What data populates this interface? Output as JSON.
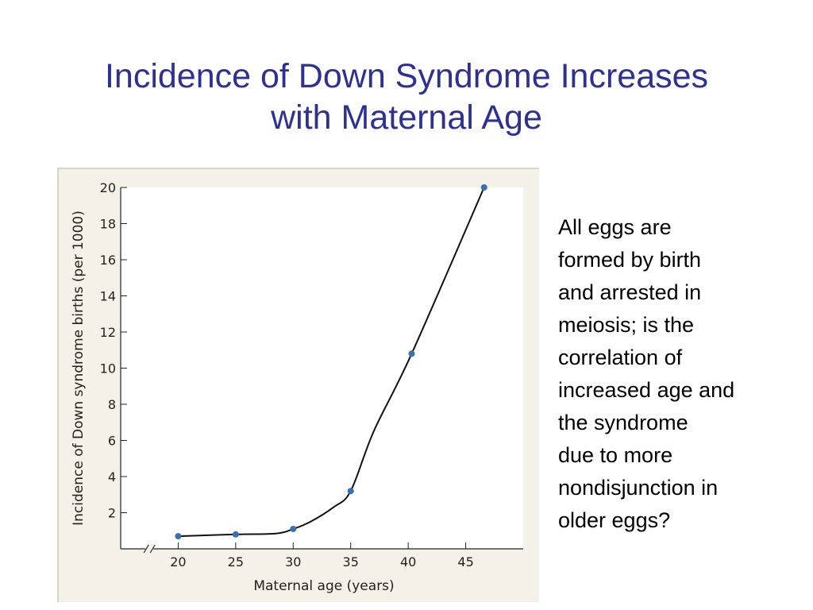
{
  "slide": {
    "title_lines": [
      "Incidence of Down Syndrome Increases",
      "with Maternal Age"
    ],
    "body_lines": [
      "All eggs are",
      "formed by birth",
      "and arrested in",
      "meiosis; is the",
      "correlation of",
      "increased age and",
      "the syndrome",
      "due to more",
      "nondisjunction in",
      "older eggs?"
    ]
  },
  "chart_data": {
    "type": "line",
    "title": "",
    "xlabel": "Maternal age (years)",
    "ylabel": "Incidence of Down syndrome births (per 1000)",
    "xlim": [
      15,
      50
    ],
    "ylim": [
      0,
      20
    ],
    "x_ticks": [
      20,
      25,
      30,
      35,
      40,
      45
    ],
    "x_tick_labels": [
      "20",
      "25",
      "30",
      "35",
      "40",
      "45"
    ],
    "y_ticks": [
      2,
      4,
      6,
      8,
      10,
      12,
      14,
      16,
      18,
      20
    ],
    "y_tick_labels": [
      "2",
      "4",
      "6",
      "8",
      "10",
      "12",
      "14",
      "16",
      "18",
      "20"
    ],
    "x_axis_break": true,
    "grid": false,
    "series": [
      {
        "points": [
          {
            "x": 20,
            "y": 0.7
          },
          {
            "x": 25,
            "y": 0.8
          },
          {
            "x": 30,
            "y": 1.1
          },
          {
            "x": 35,
            "y": 3.2
          },
          {
            "x": 40.3,
            "y": 10.8
          },
          {
            "x": 46.6,
            "y": 20
          }
        ],
        "curve": [
          {
            "x": 20,
            "y": 0.7
          },
          {
            "x": 25,
            "y": 0.8
          },
          {
            "x": 28.5,
            "y": 0.85
          },
          {
            "x": 30,
            "y": 1.1
          },
          {
            "x": 31.5,
            "y": 1.5
          },
          {
            "x": 33.5,
            "y": 2.3
          },
          {
            "x": 35,
            "y": 3.2
          },
          {
            "x": 37,
            "y": 6.5
          },
          {
            "x": 40.3,
            "y": 10.8
          },
          {
            "x": 46.6,
            "y": 20
          }
        ]
      }
    ],
    "colors": {
      "line": "#111111",
      "marker": "#3a6fb0",
      "axis": "#222222",
      "background": "#f4f1e8",
      "plot_area": "#ffffff"
    }
  }
}
